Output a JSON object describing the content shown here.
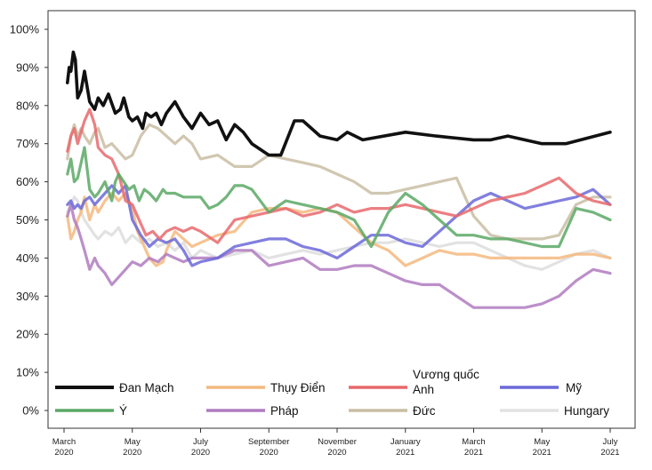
{
  "chart_data": {
    "type": "line",
    "title": "",
    "xlabel": "",
    "ylabel": "",
    "ylim": [
      0,
      100
    ],
    "y_ticks": [
      "0%",
      "10%",
      "20%",
      "30%",
      "40%",
      "50%",
      "60%",
      "70%",
      "80%",
      "90%",
      "100%"
    ],
    "x_ticks": [
      {
        "month": 0,
        "line1": "March",
        "line2": "2020"
      },
      {
        "month": 2,
        "line1": "May",
        "line2": "2020"
      },
      {
        "month": 4,
        "line1": "July",
        "line2": "2020"
      },
      {
        "month": 6,
        "line1": "September",
        "line2": "2020"
      },
      {
        "month": 8,
        "line1": "November",
        "line2": "2020"
      },
      {
        "month": 10,
        "line1": "January",
        "line2": "2021"
      },
      {
        "month": 12,
        "line1": "March",
        "line2": "2021"
      },
      {
        "month": 14,
        "line1": "May",
        "line2": "2021"
      },
      {
        "month": 16,
        "line1": "July",
        "line2": "2021"
      }
    ],
    "x_unit": "months since March 2020",
    "legend_placement": "bottom-inside",
    "series": [
      {
        "name": "Đan Mạch",
        "color": "#111111",
        "x": [
          0.1,
          0.15,
          0.2,
          0.27,
          0.33,
          0.4,
          0.5,
          0.6,
          0.75,
          0.9,
          1.0,
          1.15,
          1.3,
          1.5,
          1.65,
          1.75,
          1.9,
          2.0,
          2.15,
          2.3,
          2.4,
          2.55,
          2.7,
          2.85,
          3.0,
          3.25,
          3.5,
          3.75,
          4.0,
          4.25,
          4.5,
          4.75,
          5.0,
          5.25,
          5.5,
          6.0,
          6.35,
          6.75,
          7.0,
          7.5,
          8.0,
          8.3,
          8.75,
          10.0,
          10.9,
          12.0,
          12.5,
          13.0,
          14.0,
          14.7,
          16.0
        ],
        "values": [
          86,
          90,
          89,
          94,
          92,
          82,
          84,
          89,
          81,
          79,
          82,
          80,
          83,
          78,
          79,
          82,
          77,
          76,
          77,
          74,
          78,
          77,
          78,
          75,
          78,
          81,
          77,
          74,
          78,
          75,
          76,
          71,
          75,
          73,
          70,
          67,
          67,
          76,
          76,
          72,
          71,
          73,
          71,
          73,
          72,
          71,
          71,
          72,
          70,
          70,
          73
        ]
      },
      {
        "name": "Ý",
        "color": "#5aa865",
        "x": [
          0.1,
          0.2,
          0.3,
          0.4,
          0.5,
          0.6,
          0.75,
          0.9,
          1.0,
          1.2,
          1.4,
          1.5,
          1.6,
          1.75,
          1.9,
          2.05,
          2.2,
          2.35,
          2.5,
          2.7,
          2.9,
          3.0,
          3.25,
          3.5,
          3.75,
          4.0,
          4.25,
          4.5,
          4.75,
          5.0,
          5.25,
          5.5,
          6.0,
          6.5,
          7.0,
          7.5,
          8.0,
          8.5,
          9.0,
          9.5,
          10.0,
          10.5,
          11.0,
          11.5,
          12.0,
          12.5,
          13.0,
          13.5,
          14.0,
          14.5,
          15.0,
          15.5,
          16.0
        ],
        "values": [
          62,
          66,
          60,
          61,
          65,
          69,
          58,
          56,
          57,
          60,
          55,
          60,
          62,
          60,
          58,
          59,
          55,
          58,
          57,
          55,
          58,
          57,
          57,
          56,
          56,
          56,
          53,
          54,
          56,
          59,
          59,
          58,
          52,
          55,
          54,
          53,
          52,
          50,
          43,
          52,
          57,
          54,
          50,
          46,
          46,
          45,
          45,
          44,
          43,
          43,
          53,
          52,
          50
        ]
      },
      {
        "name": "Thụy Điển",
        "color": "#f4b97f",
        "x": [
          0.1,
          0.2,
          0.3,
          0.4,
          0.5,
          0.6,
          0.75,
          0.9,
          1.0,
          1.2,
          1.4,
          1.6,
          1.8,
          2.0,
          2.15,
          2.3,
          2.5,
          2.7,
          2.9,
          3.0,
          3.25,
          3.5,
          3.75,
          4.0,
          4.5,
          5.0,
          5.5,
          6.0,
          6.5,
          7.0,
          7.5,
          8.0,
          8.5,
          9.0,
          9.5,
          10.0,
          10.5,
          11.0,
          11.5,
          12.0,
          12.5,
          13.0,
          13.5,
          14.0,
          14.5,
          15.0,
          15.5,
          16.0
        ],
        "values": [
          51,
          45,
          47,
          50,
          52,
          56,
          50,
          54,
          52,
          55,
          57,
          55,
          57,
          53,
          47,
          44,
          40,
          38,
          39,
          42,
          47,
          45,
          43,
          44,
          46,
          47,
          52,
          53,
          53,
          52,
          53,
          52,
          48,
          44,
          42,
          38,
          40,
          42,
          41,
          41,
          40,
          40,
          40,
          40,
          40,
          41,
          41,
          40
        ]
      },
      {
        "name": "Pháp",
        "color": "#b07bc0",
        "x": [
          0.1,
          0.2,
          0.3,
          0.4,
          0.5,
          0.6,
          0.75,
          0.9,
          1.0,
          1.2,
          1.4,
          1.6,
          1.8,
          2.0,
          2.25,
          2.5,
          2.75,
          3.0,
          3.25,
          3.5,
          3.75,
          4.0,
          4.5,
          5.0,
          5.5,
          6.0,
          6.5,
          7.0,
          7.5,
          8.0,
          8.5,
          9.0,
          9.5,
          10.0,
          10.5,
          11.0,
          11.5,
          12.0,
          12.5,
          13.0,
          13.5,
          14.0,
          14.5,
          15.0,
          15.5,
          16.0
        ],
        "values": [
          51,
          54,
          50,
          48,
          45,
          42,
          37,
          40,
          38,
          36,
          33,
          35,
          37,
          39,
          38,
          40,
          39,
          41,
          40,
          39,
          40,
          40,
          40,
          42,
          42,
          38,
          39,
          40,
          37,
          37,
          38,
          38,
          36,
          34,
          33,
          33,
          30,
          27,
          27,
          27,
          27,
          28,
          30,
          34,
          37,
          36
        ]
      },
      {
        "name": "Vương quốc Anh",
        "color": "#e8686c",
        "x": [
          0.1,
          0.2,
          0.3,
          0.4,
          0.5,
          0.6,
          0.75,
          0.9,
          1.0,
          1.2,
          1.4,
          1.6,
          1.8,
          2.0,
          2.2,
          2.4,
          2.6,
          2.8,
          3.0,
          3.25,
          3.5,
          3.75,
          4.0,
          4.5,
          5.0,
          5.5,
          6.0,
          6.5,
          7.0,
          7.5,
          8.0,
          8.5,
          9.0,
          9.5,
          10.0,
          10.5,
          11.0,
          11.5,
          12.0,
          12.5,
          13.0,
          13.5,
          14.0,
          14.5,
          15.0,
          15.5,
          16.0
        ],
        "values": [
          68,
          72,
          74,
          70,
          73,
          76,
          79,
          75,
          69,
          67,
          66,
          62,
          55,
          54,
          50,
          46,
          47,
          45,
          47,
          48,
          47,
          48,
          47,
          44,
          50,
          51,
          52,
          53,
          51,
          52,
          54,
          52,
          53,
          53,
          54,
          53,
          52,
          51,
          53,
          55,
          56,
          57,
          59,
          61,
          57,
          55,
          54
        ]
      },
      {
        "name": "Đức",
        "color": "#c9bda3",
        "x": [
          0.1,
          0.2,
          0.3,
          0.4,
          0.5,
          0.6,
          0.75,
          0.9,
          1.0,
          1.2,
          1.4,
          1.6,
          1.8,
          2.0,
          2.25,
          2.5,
          2.75,
          3.0,
          3.25,
          3.5,
          3.75,
          4.0,
          4.5,
          5.0,
          5.5,
          6.0,
          6.5,
          7.0,
          7.5,
          8.0,
          8.5,
          9.0,
          9.5,
          10.0,
          10.5,
          11.0,
          11.5,
          12.0,
          12.5,
          13.0,
          13.5,
          14.0,
          14.5,
          15.0,
          15.5,
          16.0
        ],
        "values": [
          66,
          72,
          75,
          72,
          74,
          72,
          70,
          73,
          74,
          69,
          70,
          68,
          66,
          67,
          72,
          75,
          74,
          72,
          70,
          72,
          70,
          66,
          67,
          64,
          64,
          67,
          66,
          65,
          64,
          62,
          60,
          57,
          57,
          58,
          59,
          60,
          61,
          51,
          46,
          45,
          45,
          45,
          46,
          54,
          56,
          56
        ]
      },
      {
        "name": "Mỹ",
        "color": "#6b69d8",
        "x": [
          0.1,
          0.2,
          0.3,
          0.4,
          0.5,
          0.6,
          0.75,
          0.9,
          1.0,
          1.2,
          1.4,
          1.6,
          1.8,
          2.0,
          2.25,
          2.5,
          2.75,
          3.0,
          3.25,
          3.5,
          3.75,
          4.0,
          4.5,
          5.0,
          5.5,
          6.0,
          6.5,
          7.0,
          7.5,
          8.0,
          8.5,
          9.0,
          9.5,
          10.0,
          10.5,
          11.0,
          11.5,
          12.0,
          12.5,
          13.0,
          13.5,
          14.0,
          14.5,
          15.0,
          15.5,
          16.0
        ],
        "values": [
          54,
          55,
          53,
          54,
          53,
          55,
          56,
          54,
          55,
          57,
          59,
          57,
          59,
          50,
          46,
          43,
          45,
          44,
          45,
          42,
          38,
          39,
          40,
          43,
          44,
          45,
          45,
          43,
          42,
          40,
          43,
          46,
          46,
          44,
          43,
          47,
          51,
          55,
          57,
          55,
          53,
          54,
          55,
          56,
          58,
          54
        ]
      },
      {
        "name": "Hungary",
        "color": "#e2e2e2",
        "x": [
          0.1,
          0.2,
          0.3,
          0.4,
          0.5,
          0.6,
          0.75,
          0.9,
          1.0,
          1.2,
          1.4,
          1.6,
          1.8,
          2.0,
          2.25,
          2.5,
          2.75,
          3.0,
          3.25,
          3.5,
          3.75,
          4.0,
          4.5,
          5.0,
          5.5,
          6.0,
          6.5,
          7.0,
          7.5,
          8.0,
          8.5,
          9.0,
          9.5,
          10.0,
          10.5,
          11.0,
          11.5,
          12.0,
          12.5,
          13.0,
          13.5,
          14.0,
          14.5,
          15.0,
          15.5,
          16.0
        ],
        "values": [
          52,
          54,
          56,
          55,
          52,
          50,
          48,
          46,
          45,
          47,
          46,
          48,
          44,
          46,
          44,
          45,
          43,
          44,
          42,
          44,
          40,
          42,
          40,
          41,
          42,
          40,
          41,
          42,
          41,
          42,
          43,
          44,
          44,
          45,
          44,
          43,
          44,
          44,
          42,
          40,
          38,
          37,
          39,
          41,
          42,
          40
        ]
      }
    ],
    "legend": [
      {
        "label": "Đan Mạch",
        "series": "Đan Mạch"
      },
      {
        "label": "Thụy Điển",
        "series": "Thụy Điển"
      },
      {
        "label_line1": "Vương quốc",
        "label_line2": "Anh",
        "series": "Vương quốc Anh"
      },
      {
        "label": "Mỹ",
        "series": "Mỹ"
      },
      {
        "label": "Ý",
        "series": "Ý"
      },
      {
        "label": "Pháp",
        "series": "Pháp"
      },
      {
        "label": "Đức",
        "series": "Đức"
      },
      {
        "label": "Hungary",
        "series": "Hungary"
      }
    ]
  }
}
